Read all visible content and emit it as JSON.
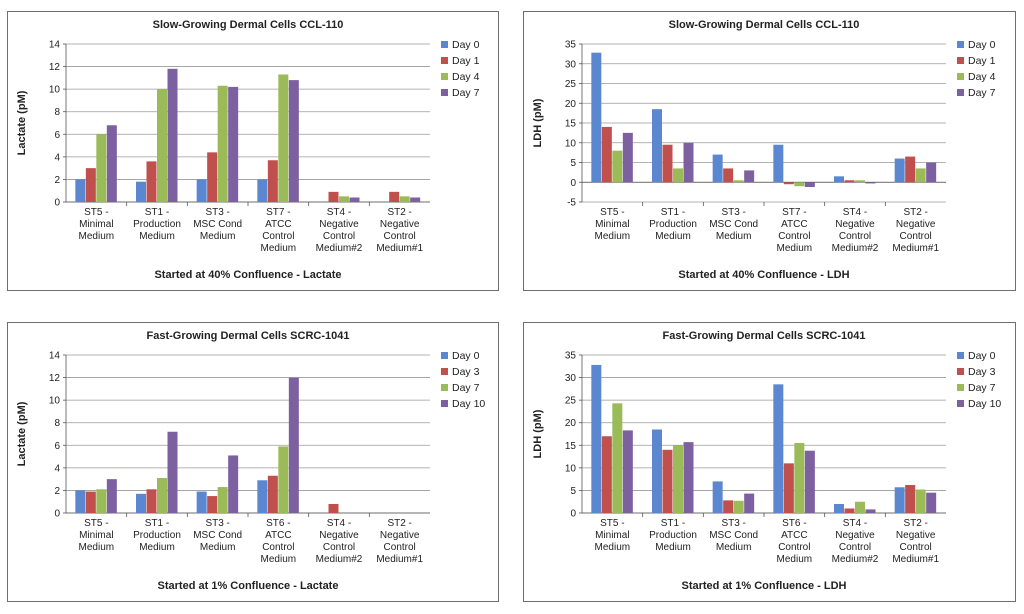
{
  "colors": {
    "day_a": "#5b87d0",
    "day_b": "#c0504d",
    "day_c": "#9bbb59",
    "day_d": "#7d60a0"
  },
  "chart_data": [
    {
      "type": "bar",
      "title": "Slow-Growing Dermal Cells CCL-110",
      "xlabel": "Started at 40% Confluence - Lactate",
      "ylabel": "Lactate (pM)",
      "ylim": [
        0,
        14
      ],
      "ystep": 2,
      "grid": true,
      "legend": "right",
      "categories": [
        [
          "ST5 -",
          "Minimal",
          "Medium"
        ],
        [
          "ST1 -",
          "Production",
          "Medium"
        ],
        [
          "ST3 -",
          "MSC Cond",
          "Medium"
        ],
        [
          "ST7 -",
          "ATCC",
          "Control",
          "Medium"
        ],
        [
          "ST4 -",
          "Negative",
          "Control",
          "Medium#2"
        ],
        [
          "ST2 -",
          "Negative",
          "Control",
          "Medium#1"
        ]
      ],
      "series": [
        {
          "name": "Day 0",
          "values": [
            2.0,
            1.8,
            2.0,
            2.0,
            0,
            0
          ]
        },
        {
          "name": "Day 1",
          "values": [
            3.0,
            3.6,
            4.4,
            3.7,
            0.9,
            0.9
          ]
        },
        {
          "name": "Day 4",
          "values": [
            6.0,
            10.0,
            10.3,
            11.3,
            0.5,
            0.5
          ]
        },
        {
          "name": "Day 7",
          "values": [
            6.8,
            11.8,
            10.2,
            10.8,
            0.4,
            0.4
          ]
        }
      ]
    },
    {
      "type": "bar",
      "title": "Slow-Growing Dermal Cells CCL-110",
      "xlabel": "Started at 40% Confluence - LDH",
      "ylabel": "LDH (pM)",
      "ylim": [
        -5,
        35
      ],
      "ystep": 5,
      "grid": true,
      "legend": "right",
      "categories": [
        [
          "ST5 -",
          "Minimal",
          "Medium"
        ],
        [
          "ST1 -",
          "Production",
          "Medium"
        ],
        [
          "ST3 -",
          "MSC Cond",
          "Medium"
        ],
        [
          "ST7 -",
          "ATCC",
          "Control",
          "Medium"
        ],
        [
          "ST4 -",
          "Negative",
          "Control",
          "Medium#2"
        ],
        [
          "ST2 -",
          "Negative",
          "Control",
          "Medium#1"
        ]
      ],
      "series": [
        {
          "name": "Day 0",
          "values": [
            32.8,
            18.5,
            7.0,
            9.5,
            1.5,
            6.0
          ]
        },
        {
          "name": "Day 1",
          "values": [
            14.0,
            9.5,
            3.5,
            -0.5,
            0.5,
            6.5
          ]
        },
        {
          "name": "Day 4",
          "values": [
            8.0,
            3.5,
            0.5,
            -1.0,
            0.5,
            3.5
          ]
        },
        {
          "name": "Day 7",
          "values": [
            12.5,
            10.0,
            3.0,
            -1.2,
            -0.3,
            5.0
          ]
        }
      ]
    },
    {
      "type": "bar",
      "title": "Fast-Growing Dermal Cells SCRC-1041",
      "xlabel": "Started at 1% Confluence - Lactate",
      "ylabel": "Lactate (pM)",
      "ylim": [
        0,
        14
      ],
      "ystep": 2,
      "grid": true,
      "legend": "right",
      "categories": [
        [
          "ST5 -",
          "Minimal",
          "Medium"
        ],
        [
          "ST1 -",
          "Production",
          "Medium"
        ],
        [
          "ST3 -",
          "MSC Cond",
          "Medium"
        ],
        [
          "ST6 -",
          "ATCC",
          "Control",
          "Medium"
        ],
        [
          "ST4 -",
          "Negative",
          "Control",
          "Medium#2"
        ],
        [
          "ST2 -",
          "Negative",
          "Control",
          "Medium#1"
        ]
      ],
      "series": [
        {
          "name": "Day 0",
          "values": [
            2.0,
            1.7,
            1.9,
            2.9,
            0,
            0
          ]
        },
        {
          "name": "Day 3",
          "values": [
            1.9,
            2.1,
            1.5,
            3.3,
            0.8,
            0
          ]
        },
        {
          "name": "Day 7",
          "values": [
            2.1,
            3.1,
            2.3,
            5.9,
            0,
            0
          ]
        },
        {
          "name": "Day 10",
          "values": [
            3.0,
            7.2,
            5.1,
            12.0,
            0,
            0
          ]
        }
      ]
    },
    {
      "type": "bar",
      "title": "Fast-Growing Dermal Cells SCRC-1041",
      "xlabel": "Started at 1% Confluence - LDH",
      "ylabel": "LDH (pM)",
      "ylim": [
        0,
        35
      ],
      "ystep": 5,
      "grid": true,
      "legend": "right",
      "categories": [
        [
          "ST5 -",
          "Minimal",
          "Medium"
        ],
        [
          "ST1 -",
          "Production",
          "Medium"
        ],
        [
          "ST3 -",
          "MSC Cond",
          "Medium"
        ],
        [
          "ST6 -",
          "ATCC",
          "Control",
          "Medium"
        ],
        [
          "ST4 -",
          "Negative",
          "Control",
          "Medium#2"
        ],
        [
          "ST2 -",
          "Negative",
          "Control",
          "Medium#1"
        ]
      ],
      "series": [
        {
          "name": "Day 0",
          "values": [
            32.8,
            18.5,
            7.0,
            28.5,
            2.0,
            5.7
          ]
        },
        {
          "name": "Day 3",
          "values": [
            17.0,
            14.0,
            2.8,
            11.0,
            1.0,
            6.2
          ]
        },
        {
          "name": "Day 7",
          "values": [
            24.3,
            15.0,
            2.7,
            15.5,
            2.5,
            5.2
          ]
        },
        {
          "name": "Day 10",
          "values": [
            18.3,
            15.7,
            4.3,
            13.8,
            0.8,
            4.5
          ]
        }
      ]
    }
  ]
}
